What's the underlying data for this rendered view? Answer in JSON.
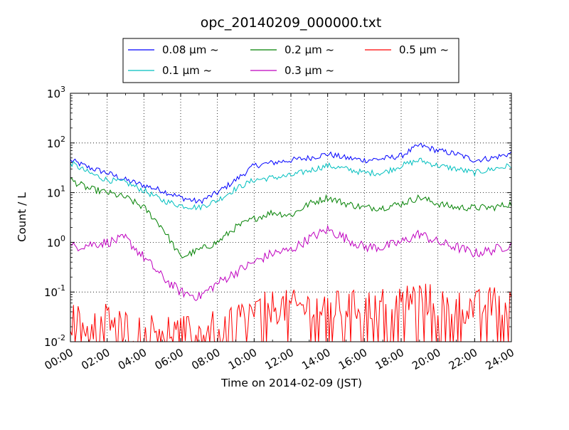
{
  "chart_data": {
    "type": "line",
    "title": "opc_20140209_000000.txt",
    "xlabel": "Time on 2014-02-09 (JST)",
    "ylabel": "Count / L",
    "x_ticks": [
      "00:00",
      "02:00",
      "04:00",
      "06:00",
      "08:00",
      "10:00",
      "12:00",
      "14:00",
      "16:00",
      "18:00",
      "20:00",
      "22:00",
      "24:00"
    ],
    "y_ticks": [
      {
        "value": 0.01,
        "base": "10",
        "exp": "-2"
      },
      {
        "value": 0.1,
        "base": "10",
        "exp": "-1"
      },
      {
        "value": 1,
        "base": "10",
        "exp": "0"
      },
      {
        "value": 10,
        "base": "10",
        "exp": "1"
      },
      {
        "value": 100,
        "base": "10",
        "exp": "2"
      },
      {
        "value": 1000,
        "base": "10",
        "exp": "3"
      }
    ],
    "xlim_hours": [
      0,
      24
    ],
    "ylim": [
      0.01,
      1000
    ],
    "yscale": "log",
    "grid": true,
    "legend_position": "top-center, above plot",
    "series": [
      {
        "name": "0.08 μm ~",
        "color": "#0000ff",
        "x": [
          0,
          1,
          2,
          3,
          4,
          5,
          6,
          7,
          8,
          9,
          10,
          11,
          12,
          13,
          14,
          15,
          16,
          17,
          18,
          19,
          20,
          21,
          22,
          23,
          24
        ],
        "values": [
          45,
          32,
          25,
          18,
          14,
          11,
          8,
          6.5,
          10,
          18,
          35,
          40,
          45,
          50,
          60,
          50,
          45,
          48,
          55,
          90,
          70,
          60,
          45,
          50,
          62
        ]
      },
      {
        "name": "0.1 μm ~",
        "color": "#00bfbf",
        "x": [
          0,
          1,
          2,
          3,
          4,
          5,
          6,
          7,
          8,
          9,
          10,
          11,
          12,
          13,
          14,
          15,
          16,
          17,
          18,
          19,
          20,
          21,
          22,
          23,
          24
        ],
        "values": [
          40,
          25,
          18,
          16,
          11,
          7,
          5.5,
          5,
          7,
          12,
          18,
          20,
          22,
          28,
          35,
          30,
          25,
          25,
          35,
          45,
          35,
          30,
          25,
          30,
          35
        ]
      },
      {
        "name": "0.2 μm ~",
        "color": "#008000",
        "x": [
          0,
          1,
          2,
          3,
          4,
          5,
          6,
          7,
          8,
          9,
          10,
          11,
          12,
          13,
          14,
          15,
          16,
          17,
          18,
          19,
          20,
          21,
          22,
          23,
          24
        ],
        "values": [
          18,
          12,
          10,
          8,
          5,
          2,
          0.5,
          0.7,
          1,
          2,
          3,
          4,
          3.5,
          6,
          8,
          6,
          5,
          5,
          6,
          8,
          6,
          5,
          5,
          5,
          6
        ]
      },
      {
        "name": "0.3 μm ~",
        "color": "#bf00bf",
        "x": [
          0,
          1,
          2,
          3,
          4,
          5,
          6,
          7,
          8,
          9,
          10,
          11,
          12,
          13,
          14,
          15,
          16,
          17,
          18,
          19,
          20,
          21,
          22,
          23,
          24
        ],
        "values": [
          0.8,
          0.9,
          1,
          1.2,
          0.5,
          0.2,
          0.1,
          0.08,
          0.15,
          0.25,
          0.4,
          0.6,
          0.7,
          1.2,
          1.8,
          1.2,
          0.8,
          0.8,
          1,
          1.5,
          1,
          0.8,
          0.6,
          0.7,
          0.9
        ]
      },
      {
        "name": "0.5 μm ~",
        "color": "#ff0000",
        "x": [
          0,
          1,
          2,
          3,
          4,
          5,
          6,
          7,
          8,
          9,
          10,
          11,
          12,
          13,
          14,
          15,
          16,
          17,
          18,
          19,
          20,
          21,
          22,
          23,
          24
        ],
        "values": [
          0.03,
          0.02,
          0.03,
          0.02,
          0.015,
          0.02,
          0.015,
          0.015,
          0.02,
          0.03,
          0.04,
          0.05,
          0.05,
          0.05,
          0.05,
          0.05,
          0.05,
          0.06,
          0.07,
          0.08,
          0.06,
          0.05,
          0.05,
          0.06,
          0.07
        ]
      }
    ]
  }
}
